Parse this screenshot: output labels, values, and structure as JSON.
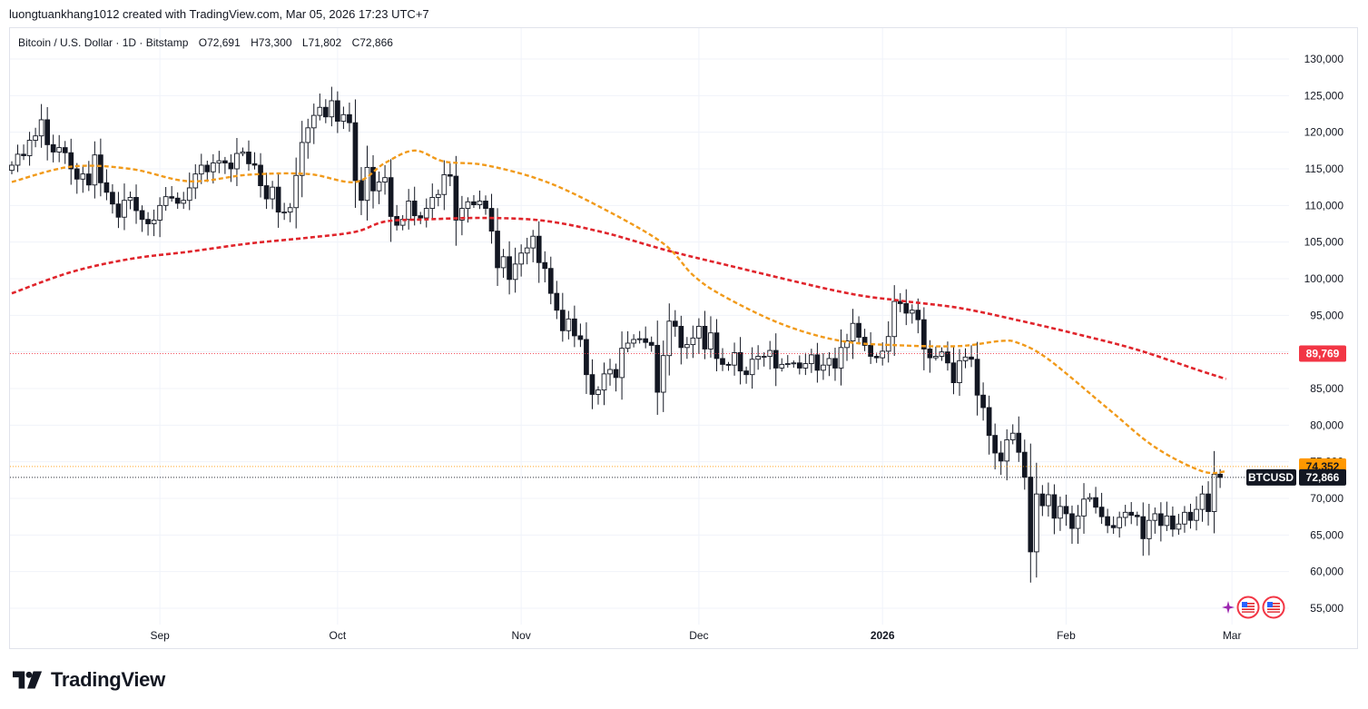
{
  "header": {
    "created_text": "luongtuankhang1012 created with TradingView.com, Mar 05, 2026 17:23 UTC+7"
  },
  "symbol": {
    "title": "Bitcoin / U.S. Dollar · 1D · Bitstamp",
    "open": "O72,691",
    "high": "H73,300",
    "low": "L71,802",
    "close": "C72,866"
  },
  "brand": {
    "logo_text": "TradingView"
  },
  "colors": {
    "up": "#ffffff",
    "down": "#131722",
    "ma_fast": "#f19a1a",
    "ma_slow": "#e0242b",
    "grid": "#f0f3fa",
    "price_label_bg": "#131722",
    "ma_slow_label_bg": "#f23645",
    "ma_fast_label_bg": "#ff9800"
  },
  "chart_data": {
    "type": "candlestick",
    "y_axis": {
      "min": 52000,
      "max": 133000,
      "ticks": [
        55000,
        60000,
        65000,
        70000,
        75000,
        80000,
        85000,
        90000,
        95000,
        100000,
        105000,
        110000,
        115000,
        120000,
        125000,
        130000
      ],
      "tick_labels": [
        "55,000",
        "60,000",
        "65,000",
        "70,000",
        "75,000",
        "80,000",
        "85,000",
        "90,000",
        "95,000",
        "100,000",
        "105,000",
        "110,000",
        "115,000",
        "120,000",
        "125,000",
        "130,000"
      ]
    },
    "x_axis": {
      "start_date": "2025-08-07",
      "ticks": [
        {
          "label": "Sep",
          "date": "2025-09-01",
          "bold": false
        },
        {
          "label": "Oct",
          "date": "2025-10-01",
          "bold": false
        },
        {
          "label": "Nov",
          "date": "2025-11-01",
          "bold": false
        },
        {
          "label": "Dec",
          "date": "2025-12-01",
          "bold": false
        },
        {
          "label": "2026",
          "date": "2026-01-01",
          "bold": true
        },
        {
          "label": "Feb",
          "date": "2026-02-01",
          "bold": false
        },
        {
          "label": "Mar",
          "date": "2026-03-01",
          "bold": false
        }
      ]
    },
    "candles_close": [
      115500,
      117000,
      116800,
      118900,
      119500,
      121700,
      118300,
      117300,
      117900,
      117200,
      115000,
      113600,
      114300,
      112800,
      116900,
      113100,
      111800,
      110200,
      108400,
      110700,
      111100,
      109300,
      108100,
      107500,
      108000,
      110000,
      111200,
      111000,
      110300,
      110700,
      112400,
      114300,
      115500,
      114600,
      115800,
      116100,
      115800,
      115000,
      117100,
      117300,
      115700,
      115500,
      112700,
      110900,
      112500,
      109100,
      109100,
      109700,
      114100,
      118600,
      120600,
      122300,
      123400,
      122100,
      124300,
      121500,
      122400,
      121300,
      113400,
      110700,
      115200,
      112000,
      113200,
      113800,
      108500,
      107300,
      108100,
      110600,
      108600,
      108300,
      109600,
      111100,
      111500,
      114200,
      114000,
      108000,
      109600,
      110500,
      110100,
      110600,
      109600,
      106500,
      101500,
      103000,
      99900,
      102000,
      103500,
      104200,
      105800,
      102200,
      101400,
      98000,
      95700,
      92900,
      94500,
      92200,
      91700,
      86900,
      84200,
      84800,
      87000,
      87600,
      86500,
      90500,
      91200,
      91700,
      91800,
      91300,
      90900,
      84500,
      89500,
      94200,
      93500,
      90600,
      91000,
      91900,
      93500,
      90400,
      92600,
      89100,
      88300,
      88200,
      89900,
      87400,
      86900,
      89000,
      89400,
      89400,
      90200,
      87800,
      88300,
      88400,
      88500,
      87800,
      88400,
      89600,
      87500,
      88200,
      89100,
      87800,
      90600,
      91500,
      93900,
      92000,
      90900,
      89400,
      89200,
      90100,
      92100,
      96900,
      96600,
      95300,
      95700,
      94400,
      90400,
      89200,
      89400,
      90000,
      88500,
      85800,
      88800,
      89300,
      89000,
      84100,
      82400,
      78600,
      76200,
      75100,
      78000,
      78900,
      76300,
      72900,
      62700,
      70600,
      69000,
      70500,
      67300,
      68900,
      67900,
      65900,
      67600,
      69900,
      70100,
      68800,
      67500,
      66300,
      66000,
      67400,
      68100,
      67700,
      67500,
      64500,
      67000,
      67900,
      66300,
      67600,
      65800,
      66500,
      68100,
      67000,
      68500,
      70600,
      68200,
      73300,
      72866
    ],
    "ma_fast_points": [
      [
        0,
        113200
      ],
      [
        10,
        115300
      ],
      [
        20,
        115000
      ],
      [
        30,
        113300
      ],
      [
        40,
        114200
      ],
      [
        50,
        114300
      ],
      [
        58,
        113200
      ],
      [
        63,
        115800
      ],
      [
        68,
        117500
      ],
      [
        73,
        116000
      ],
      [
        80,
        115500
      ],
      [
        90,
        113300
      ],
      [
        100,
        109500
      ],
      [
        110,
        104800
      ],
      [
        115,
        100500
      ],
      [
        120,
        97700
      ],
      [
        130,
        93800
      ],
      [
        140,
        91500
      ],
      [
        150,
        90900
      ],
      [
        160,
        90800
      ],
      [
        167,
        91500
      ],
      [
        170,
        91200
      ],
      [
        175,
        89000
      ],
      [
        185,
        82300
      ],
      [
        193,
        77000
      ],
      [
        201,
        73700
      ],
      [
        205,
        73700
      ]
    ],
    "ma_slow_points": [
      [
        0,
        98000
      ],
      [
        10,
        100900
      ],
      [
        20,
        102700
      ],
      [
        30,
        103700
      ],
      [
        40,
        104800
      ],
      [
        50,
        105600
      ],
      [
        58,
        106400
      ],
      [
        63,
        107800
      ],
      [
        70,
        108100
      ],
      [
        80,
        108300
      ],
      [
        90,
        107900
      ],
      [
        100,
        106300
      ],
      [
        110,
        104000
      ],
      [
        120,
        102000
      ],
      [
        140,
        98200
      ],
      [
        150,
        97000
      ],
      [
        160,
        96000
      ],
      [
        170,
        94300
      ],
      [
        180,
        92400
      ],
      [
        190,
        90300
      ],
      [
        200,
        87600
      ],
      [
        205,
        86300
      ]
    ],
    "price_labels": [
      {
        "text": "89,769",
        "value": 89769,
        "kind": "ma_slow"
      },
      {
        "text": "74,352",
        "value": 74352,
        "kind": "ma_fast"
      },
      {
        "text": "72,866",
        "value": 72866,
        "kind": "last",
        "symbol": "BTCUSD"
      }
    ]
  }
}
